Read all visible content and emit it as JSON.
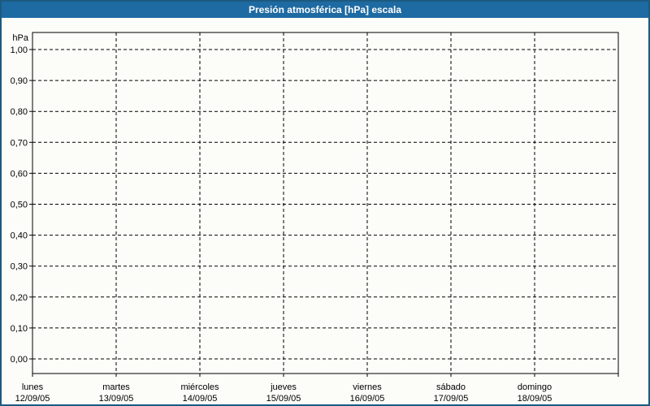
{
  "window": {
    "title": "Presión atmosférica [hPa] escala"
  },
  "chart_data": {
    "type": "line",
    "title": "Presión atmosférica [hPa] escala",
    "y_axis": {
      "unit_label": "hPa",
      "tick_labels": [
        "1,00",
        "0,90",
        "0,80",
        "0,70",
        "0,60",
        "0,50",
        "0,40",
        "0,30",
        "0,20",
        "0,10",
        "0,00"
      ],
      "tick_values": [
        1.0,
        0.9,
        0.8,
        0.7,
        0.6,
        0.5,
        0.4,
        0.3,
        0.2,
        0.1,
        0.0
      ],
      "range": [
        0.0,
        1.0
      ],
      "step": 0.1
    },
    "x_axis": {
      "categories": [
        {
          "day": "lunes",
          "date": "12/09/05"
        },
        {
          "day": "martes",
          "date": "13/09/05"
        },
        {
          "day": "miércoles",
          "date": "14/09/05"
        },
        {
          "day": "jueves",
          "date": "15/09/05"
        },
        {
          "day": "viernes",
          "date": "16/09/05"
        },
        {
          "day": "sábado",
          "date": "17/09/05"
        },
        {
          "day": "domingo",
          "date": "18/09/05"
        }
      ]
    },
    "series": [],
    "grid": {
      "style": "dashed",
      "horizontal": true,
      "vertical": true
    },
    "legend": "none"
  },
  "colors": {
    "titlebar_bg": "#1E6AA2",
    "titlebar_text": "#FFFFFF",
    "frame_border": "#1C5A80",
    "background": "#FCFDF8",
    "grid_line": "#000000",
    "axis_text": "#000000"
  }
}
